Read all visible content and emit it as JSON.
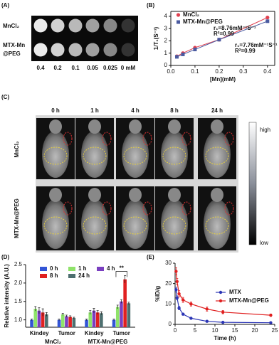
{
  "panel_labels": [
    "(A)",
    "(B)",
    "(C)",
    "(D)",
    "(E)"
  ],
  "panel_a": {
    "rows": [
      "MnCl₂",
      [
        "MTX-Mn",
        "@PEG"
      ]
    ],
    "concentrations": [
      "0.4",
      "0.2",
      "0.1",
      "0.05",
      "0.025",
      "0 mM"
    ]
  },
  "panel_c": {
    "times": [
      "0 h",
      "1 h",
      "4 h",
      "8 h",
      "24 h"
    ],
    "rows": [
      "MnCl₂",
      "MTX-Mn@PEG"
    ],
    "colorbar": [
      "high",
      "low"
    ]
  },
  "chart_data": [
    {
      "type": "scatter",
      "xlabel": "[Mn](mM)",
      "ylabel": "1/T₁(S⁻¹)",
      "xlim": [
        0,
        0.43
      ],
      "ylim": [
        0,
        4.4
      ],
      "xticks": [
        {
          "value": 0,
          "label": "0.0"
        },
        0.1,
        0.2,
        0.3,
        0.4
      ],
      "yticks": [
        0,
        1,
        2,
        3,
        4
      ],
      "series": [
        {
          "name": "MnCl₂",
          "color": "#e0404f",
          "marker": "circle",
          "x": [
            0.025,
            0.05,
            0.1,
            0.2,
            0.4
          ],
          "values": [
            0.75,
            1.0,
            1.45,
            2.1,
            3.9
          ]
        },
        {
          "name": "MTX-Mn@PEG",
          "color": "#4a5aa0",
          "marker": "square",
          "x": [
            0.025,
            0.05,
            0.1,
            0.2,
            0.4
          ],
          "values": [
            0.7,
            0.9,
            1.3,
            2.1,
            3.6
          ]
        }
      ],
      "annotations": [
        {
          "text": "r₁=8.76mM⁻¹S⁻¹",
          "color": "#222"
        },
        {
          "text": "R²=0.99",
          "color": "#222"
        },
        {
          "text": "r₁=7.76mM⁻¹S⁻¹",
          "color": "#3a4a9a"
        },
        {
          "text": "R²=0.99",
          "color": "#3a4a9a"
        }
      ]
    },
    {
      "type": "bar",
      "ylabel": "Relative intensity (A.U.)",
      "categories": [
        "Kindey",
        "Tumor",
        "Kindey",
        "Tumor"
      ],
      "group_labels": [
        "MnCl₂",
        "MTX-Mn@PEG"
      ],
      "ylim": [
        0.8,
        2.5
      ],
      "yticks": [
        {
          "value": 1,
          "label": "1.0"
        },
        1.5,
        {
          "value": 2,
          "label": "2.0"
        },
        2.5
      ],
      "series": [
        {
          "name": "0 h",
          "color": "#3355d6",
          "values": [
            1.0,
            1.0,
            1.0,
            1.0
          ],
          "errors": [
            0.02,
            0.02,
            0.02,
            0.02
          ]
        },
        {
          "name": "1 h",
          "color": "#8fe36a",
          "values": [
            1.3,
            1.15,
            1.2,
            1.35
          ],
          "errors": [
            0.06,
            0.03,
            0.05,
            0.05
          ]
        },
        {
          "name": "4 h",
          "color": "#7a3fc0",
          "values": [
            1.25,
            1.1,
            1.25,
            1.5
          ],
          "errors": [
            0.08,
            0.03,
            0.06,
            0.05
          ]
        },
        {
          "name": "8 h",
          "color": "#e02020",
          "values": [
            1.2,
            1.08,
            1.2,
            2.1
          ],
          "errors": [
            0.1,
            0.03,
            0.05,
            0.1
          ]
        },
        {
          "name": "24 h",
          "color": "#4d6f6f",
          "values": [
            1.15,
            1.05,
            1.18,
            1.45
          ],
          "errors": [
            0.05,
            0.02,
            0.04,
            0.03
          ]
        }
      ],
      "annotation": "**"
    },
    {
      "type": "line",
      "xlabel": "Time (h)",
      "ylabel": "%ID/g",
      "xlim": [
        0,
        25
      ],
      "ylim": [
        0,
        30
      ],
      "xticks": [
        0,
        5,
        10,
        15,
        20,
        25
      ],
      "yticks": [
        0,
        10,
        20,
        30
      ],
      "x": [
        0.25,
        0.5,
        1,
        2,
        4,
        8,
        12,
        24
      ],
      "series": [
        {
          "name": "MTX",
          "color": "#2b35b5",
          "values": [
            17,
            13,
            8,
            5,
            3,
            1.5,
            1,
            0.8
          ],
          "errors": [
            1.2,
            1,
            0.8,
            0.5,
            0.4,
            0.3,
            0.2,
            0.2
          ]
        },
        {
          "name": "MTX-Mn@PEG",
          "color": "#e02020",
          "values": [
            26,
            21,
            15,
            12,
            10,
            7.5,
            6,
            4.5
          ],
          "errors": [
            1.8,
            1.5,
            1.5,
            1.2,
            1,
            1,
            0.8,
            0.6
          ]
        }
      ]
    }
  ]
}
